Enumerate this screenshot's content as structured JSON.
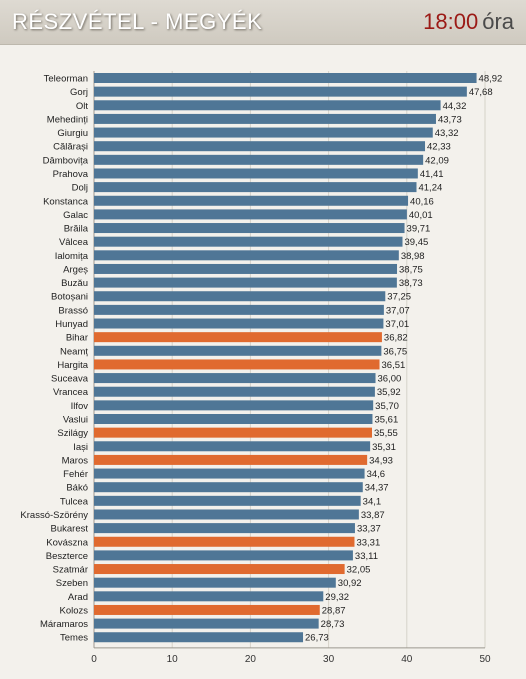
{
  "header": {
    "title": "RÉSZVÉTEL - MEGYÉK",
    "time": "18:00",
    "time_unit": "óra"
  },
  "colors": {
    "default_bar": "#4f7696",
    "highlight_bar": "#e06a2f",
    "background": "#f3f1ec",
    "title_time": "#9b1a16"
  },
  "chart_data": {
    "type": "bar",
    "orientation": "horizontal",
    "title": "RÉSZVÉTEL - MEGYÉK",
    "xlabel": "",
    "ylabel": "",
    "xlim": [
      0,
      50
    ],
    "x_ticks": [
      0,
      10,
      20,
      30,
      40,
      50
    ],
    "grid": true,
    "legend": "none",
    "categories": [
      "Teleorman",
      "Gorj",
      "Olt",
      "Mehedinți",
      "Giurgiu",
      "Călărași",
      "Dâmbovița",
      "Prahova",
      "Dolj",
      "Konstanca",
      "Galac",
      "Brăila",
      "Vâlcea",
      "Ialomița",
      "Argeș",
      "Buzău",
      "Botoșani",
      "Brassó",
      "Hunyad",
      "Bihar",
      "Neamț",
      "Hargita",
      "Suceava",
      "Vrancea",
      "Ilfov",
      "Vaslui",
      "Szilágy",
      "Iași",
      "Maros",
      "Fehér",
      "Bákó",
      "Tulcea",
      "Krassó-Szörény",
      "Bukarest",
      "Kovászna",
      "Beszterce",
      "Szatmár",
      "Szeben",
      "Arad",
      "Kolozs",
      "Máramaros",
      "Temes"
    ],
    "values": [
      48.92,
      47.68,
      44.32,
      43.73,
      43.32,
      42.33,
      42.09,
      41.41,
      41.24,
      40.16,
      40.01,
      39.71,
      39.45,
      38.98,
      38.75,
      38.73,
      37.25,
      37.07,
      37.01,
      36.82,
      36.75,
      36.51,
      36.0,
      35.92,
      35.7,
      35.61,
      35.55,
      35.31,
      34.93,
      34.6,
      34.37,
      34.1,
      33.87,
      33.37,
      33.31,
      33.11,
      32.05,
      30.92,
      29.32,
      28.87,
      28.73,
      26.73
    ],
    "labels": [
      "48,92",
      "47,68",
      "44,32",
      "43,73",
      "43,32",
      "42,33",
      "42,09",
      "41,41",
      "41,24",
      "40,16",
      "40,01",
      "39,71",
      "39,45",
      "38,98",
      "38,75",
      "38,73",
      "37,25",
      "37,07",
      "37,01",
      "36,82",
      "36,75",
      "36,51",
      "36,00",
      "35,92",
      "35,70",
      "35,61",
      "35,55",
      "35,31",
      "34,93",
      "34,6",
      "34,37",
      "34,1",
      "33,87",
      "33,37",
      "33,31",
      "33,11",
      "32,05",
      "30,92",
      "29,32",
      "28,87",
      "28,73",
      "26,73"
    ],
    "highlighted": [
      "Bihar",
      "Hargita",
      "Szilágy",
      "Maros",
      "Kovászna",
      "Szatmár",
      "Kolozs"
    ]
  }
}
